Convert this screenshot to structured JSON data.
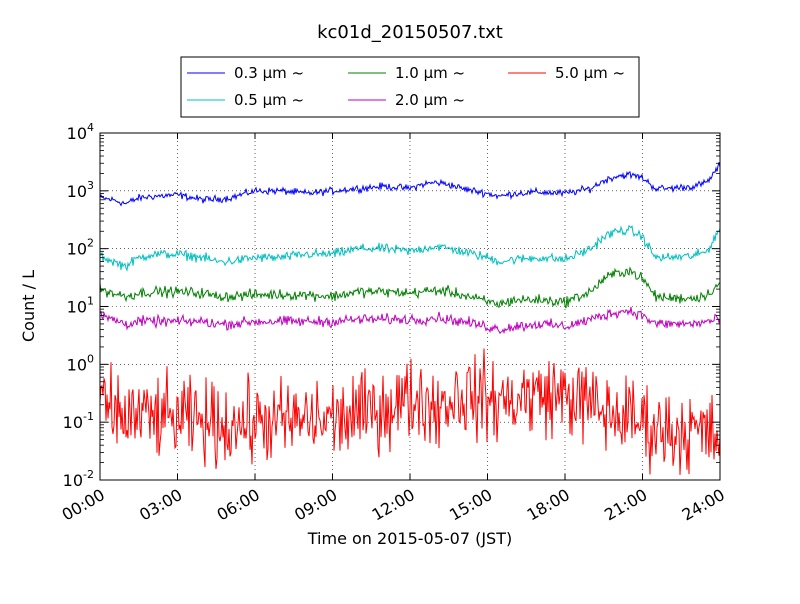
{
  "chart_data": {
    "type": "line",
    "title": "kc01d_20150507.txt",
    "xlabel": "Time on 2015-05-07 (JST)",
    "ylabel": "Count / L",
    "x_unit": "hours",
    "xlim": [
      0,
      24
    ],
    "ylim": [
      0.01,
      10000
    ],
    "yscale": "log",
    "grid": true,
    "legend_position": "top-center",
    "x_ticks": [
      {
        "value": 0,
        "label": "00:00"
      },
      {
        "value": 3,
        "label": "03:00"
      },
      {
        "value": 6,
        "label": "06:00"
      },
      {
        "value": 9,
        "label": "09:00"
      },
      {
        "value": 12,
        "label": "12:00"
      },
      {
        "value": 15,
        "label": "15:00"
      },
      {
        "value": 18,
        "label": "18:00"
      },
      {
        "value": 21,
        "label": "21:00"
      },
      {
        "value": 24,
        "label": "24:00"
      }
    ],
    "y_ticks": [
      {
        "value": 0.01,
        "base": "10",
        "exp": "-2"
      },
      {
        "value": 0.1,
        "base": "10",
        "exp": "-1"
      },
      {
        "value": 1,
        "base": "10",
        "exp": "0"
      },
      {
        "value": 10,
        "base": "10",
        "exp": "1"
      },
      {
        "value": 100,
        "base": "10",
        "exp": "2"
      },
      {
        "value": 1000,
        "base": "10",
        "exp": "3"
      },
      {
        "value": 10000,
        "base": "10",
        "exp": "4"
      }
    ],
    "series": [
      {
        "name": "0.3 μm ~",
        "color": "#0000ff",
        "noise": 0.06,
        "x": [
          0,
          0.5,
          1,
          1.5,
          2,
          3,
          4,
          4.5,
          5,
          6,
          7,
          8,
          9,
          10,
          11,
          12,
          12.5,
          13,
          13.5,
          14,
          15,
          15.5,
          16,
          17,
          18,
          19,
          19.5,
          20,
          20.5,
          21,
          21.5,
          22,
          23,
          23.5,
          24
        ],
        "y": [
          750,
          700,
          600,
          750,
          800,
          850,
          700,
          720,
          750,
          1000,
          1000,
          900,
          1000,
          1100,
          1200,
          1100,
          1300,
          1400,
          1300,
          1100,
          900,
          800,
          900,
          950,
          900,
          1100,
          1500,
          1800,
          1900,
          1700,
          1100,
          1100,
          1200,
          1400,
          2800
        ]
      },
      {
        "name": "0.5 μm ~",
        "color": "#00bfbf",
        "noise": 0.08,
        "x": [
          0,
          0.5,
          1,
          1.5,
          2,
          3,
          4,
          4.5,
          5,
          6,
          7,
          8,
          9,
          10,
          11,
          12,
          12.5,
          13,
          13.5,
          14,
          15,
          15.5,
          16,
          17,
          18,
          19,
          19.5,
          20,
          20.5,
          21,
          21.5,
          22,
          23,
          23.5,
          24
        ],
        "y": [
          75,
          60,
          50,
          70,
          80,
          80,
          70,
          60,
          60,
          70,
          70,
          80,
          80,
          100,
          100,
          90,
          100,
          110,
          100,
          90,
          70,
          60,
          65,
          70,
          65,
          100,
          160,
          200,
          210,
          160,
          70,
          70,
          75,
          90,
          230
        ]
      },
      {
        "name": "1.0 μm ~",
        "color": "#008000",
        "noise": 0.09,
        "x": [
          0,
          0.5,
          1,
          1.5,
          2,
          3,
          4,
          4.5,
          5,
          6,
          7,
          8,
          9,
          10,
          11,
          12,
          12.5,
          13,
          13.5,
          14,
          15,
          15.5,
          16,
          17,
          18,
          19,
          19.5,
          20,
          20.5,
          21,
          21.5,
          22,
          23,
          23.5,
          24
        ],
        "y": [
          20,
          17,
          15,
          17,
          18,
          18,
          17,
          15,
          15,
          16,
          16,
          16,
          15,
          18,
          18,
          17,
          18,
          19,
          18,
          16,
          12,
          11,
          13,
          13,
          12,
          18,
          30,
          38,
          42,
          30,
          15,
          14,
          14,
          16,
          26
        ]
      },
      {
        "name": "2.0 μm ~",
        "color": "#bf00bf",
        "noise": 0.09,
        "x": [
          0,
          0.5,
          1,
          1.5,
          2,
          3,
          4,
          4.5,
          5,
          6,
          7,
          8,
          9,
          10,
          11,
          12,
          12.5,
          13,
          13.5,
          14,
          15,
          15.5,
          16,
          17,
          18,
          19,
          19.5,
          20,
          20.5,
          21,
          21.5,
          22,
          23,
          23.5,
          24
        ],
        "y": [
          7,
          6,
          5,
          5.5,
          5.5,
          5.5,
          5.5,
          5,
          5,
          5.5,
          5.5,
          5.5,
          5.5,
          6,
          6,
          6,
          6,
          6.5,
          6,
          5.5,
          4.5,
          4,
          4.5,
          5,
          4.5,
          6,
          7,
          8,
          8.5,
          7,
          5,
          5,
          5,
          5.5,
          6
        ]
      },
      {
        "name": "5.0 μm ~",
        "color": "#ff0000",
        "noise": 0.7,
        "x": [
          0,
          0.5,
          1,
          1.5,
          2,
          3,
          4,
          4.5,
          5,
          6,
          7,
          8,
          9,
          10,
          11,
          12,
          12.5,
          13,
          13.5,
          14,
          15,
          15.5,
          16,
          17,
          18,
          19,
          19.5,
          20,
          20.5,
          21,
          21.5,
          22,
          23,
          23.5,
          24
        ],
        "y": [
          0.2,
          0.15,
          0.12,
          0.13,
          0.12,
          0.11,
          0.1,
          0.09,
          0.09,
          0.1,
          0.1,
          0.11,
          0.11,
          0.13,
          0.18,
          0.25,
          0.25,
          0.18,
          0.25,
          0.3,
          0.25,
          0.22,
          0.25,
          0.3,
          0.3,
          0.2,
          0.15,
          0.13,
          0.12,
          0.1,
          0.08,
          0.07,
          0.07,
          0.06,
          0.05
        ]
      }
    ]
  }
}
